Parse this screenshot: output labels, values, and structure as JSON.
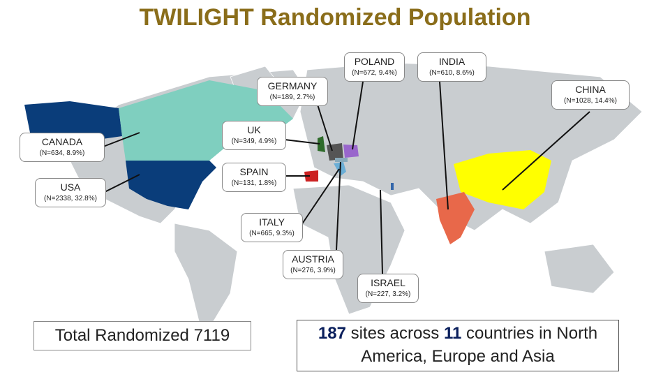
{
  "title": "TWILIGHT Randomized Population",
  "callouts": [
    {
      "name": "POLAND",
      "detail": "(N=672, 9.4%)"
    },
    {
      "name": "INDIA",
      "detail": "(N=610, 8.6%)"
    },
    {
      "name": "GERMANY",
      "detail": "(N=189, 2.7%)"
    },
    {
      "name": "CHINA",
      "detail": "(N=1028, 14.4%)"
    },
    {
      "name": "UK",
      "detail": "(N=349, 4.9%)"
    },
    {
      "name": "CANADA",
      "detail": "(N=634, 8.9%)"
    },
    {
      "name": "SPAIN",
      "detail": "(N=131, 1.8%)"
    },
    {
      "name": "USA",
      "detail": "(N=2338, 32.8%)"
    },
    {
      "name": "ITALY",
      "detail": "(N=665, 9.3%)"
    },
    {
      "name": "AUSTRIA",
      "detail": "(N=276, 3.9%)"
    },
    {
      "name": "ISRAEL",
      "detail": "(N=227, 3.2%)"
    }
  ],
  "total_box": "Total Randomized 7119",
  "summary": {
    "sites": "187",
    "sites_text": "sites across",
    "countries": "11",
    "countries_text": "countries in North America, Europe and Asia"
  }
}
